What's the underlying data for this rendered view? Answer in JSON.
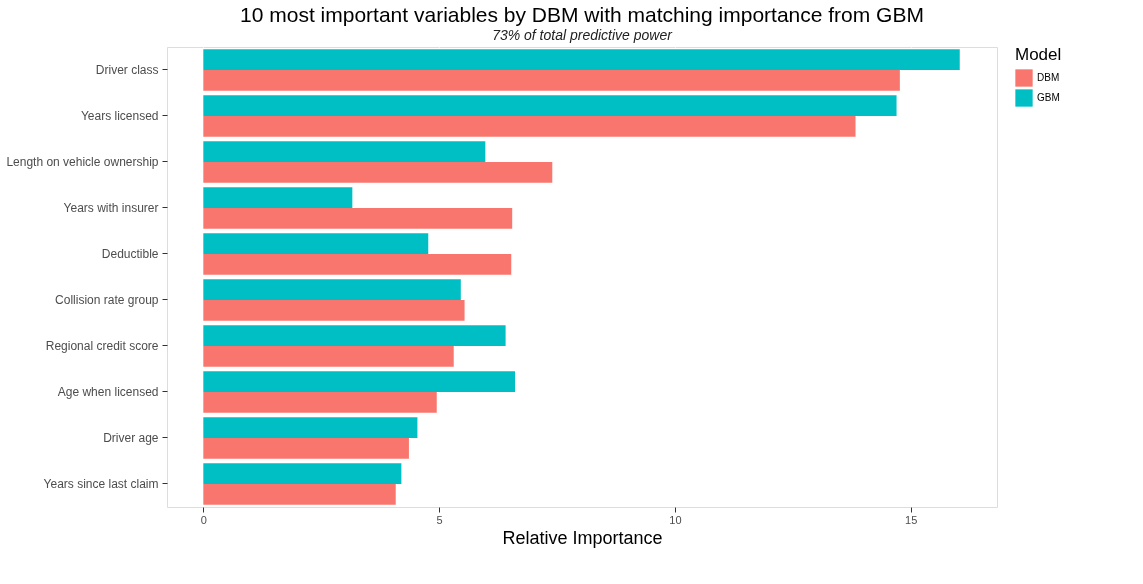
{
  "chart_data": {
    "type": "bar",
    "orientation": "horizontal",
    "title": "10 most important variables by DBM with matching importance from GBM",
    "subtitle": "73% of total predictive power",
    "xlabel": "Relative Importance",
    "legend_title": "Model",
    "legend": "right",
    "grid": "x",
    "categories": [
      "Driver class",
      "Years licensed",
      "Length on vehicle ownership",
      "Years with insurer",
      "Deductible",
      "Collision rate group",
      "Regional credit score",
      "Age when licensed",
      "Driver age",
      "Years since last claim"
    ],
    "series": [
      {
        "name": "DBM",
        "color": "#f8766d",
        "values": [
          14.77,
          13.83,
          7.4,
          6.55,
          6.53,
          5.54,
          5.31,
          4.95,
          4.36,
          4.08
        ]
      },
      {
        "name": "GBM",
        "color": "#00bfc4",
        "values": [
          16.04,
          14.7,
          5.98,
          3.16,
          4.77,
          5.46,
          6.41,
          6.61,
          4.54,
          4.2
        ]
      }
    ],
    "xlim": [
      -0.77,
      16.83
    ],
    "xticks": [
      0,
      5,
      10,
      15
    ]
  }
}
